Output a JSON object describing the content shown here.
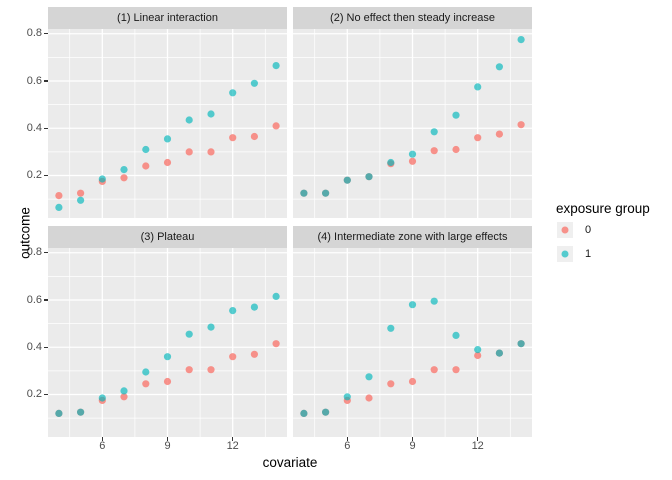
{
  "chart_data": {
    "type": "scatter",
    "xlabel": "covariate",
    "ylabel": "outcome",
    "x": [
      4,
      5,
      6,
      7,
      8,
      9,
      10,
      11,
      12,
      13,
      14
    ],
    "x_ticks": [
      6,
      9,
      12
    ],
    "y_ticks": [
      0.2,
      0.4,
      0.6,
      0.8
    ],
    "x_minor": [
      4.5,
      7.5,
      10.5,
      13.5
    ],
    "y_minor": [
      0.1,
      0.3,
      0.5,
      0.7
    ],
    "x_domain": [
      3.5,
      14.5
    ],
    "y_domain": [
      0.02,
      0.82
    ],
    "grid": true,
    "point_alpha": 0.7,
    "legend": {
      "title": "exposure group",
      "position": "right",
      "entries": [
        {
          "label": "0",
          "color": "#F8766D"
        },
        {
          "label": "1",
          "color": "#00BFC4"
        }
      ]
    },
    "facets": [
      {
        "title": "(1) Linear interaction",
        "series": [
          {
            "name": "0",
            "values": [
              0.115,
              0.125,
              0.175,
              0.19,
              0.24,
              0.255,
              0.3,
              0.3,
              0.36,
              0.365,
              0.41
            ]
          },
          {
            "name": "1",
            "values": [
              0.065,
              0.095,
              0.185,
              0.225,
              0.31,
              0.355,
              0.435,
              0.46,
              0.55,
              0.59,
              0.665
            ]
          }
        ]
      },
      {
        "title": "(2) No effect then steady increase",
        "series": [
          {
            "name": "0",
            "values": [
              0.125,
              0.125,
              0.18,
              0.195,
              0.25,
              0.26,
              0.305,
              0.31,
              0.36,
              0.375,
              0.415
            ]
          },
          {
            "name": "1",
            "values": [
              0.125,
              0.125,
              0.18,
              0.195,
              0.255,
              0.29,
              0.385,
              0.455,
              0.575,
              0.66,
              0.775
            ]
          }
        ]
      },
      {
        "title": "(3) Plateau",
        "series": [
          {
            "name": "0",
            "values": [
              0.12,
              0.125,
              0.175,
              0.19,
              0.245,
              0.255,
              0.305,
              0.305,
              0.36,
              0.37,
              0.415
            ]
          },
          {
            "name": "1",
            "values": [
              0.12,
              0.125,
              0.185,
              0.215,
              0.295,
              0.36,
              0.455,
              0.485,
              0.555,
              0.57,
              0.615
            ]
          }
        ]
      },
      {
        "title": "(4) Intermediate zone with large effects",
        "series": [
          {
            "name": "0",
            "values": [
              0.12,
              0.125,
              0.175,
              0.185,
              0.245,
              0.255,
              0.305,
              0.305,
              0.365,
              0.375,
              0.415
            ]
          },
          {
            "name": "1",
            "values": [
              0.12,
              0.125,
              0.19,
              0.275,
              0.48,
              0.58,
              0.595,
              0.45,
              0.39,
              0.375,
              0.415
            ]
          }
        ]
      }
    ]
  },
  "colors": {
    "panel_bg": "#EBEBEB",
    "strip_bg": "#D5D5D5",
    "gridline": "#FFFFFF",
    "tick_text": "#4D4D4D",
    "group0": "#F8766D",
    "group1": "#00BFC4",
    "legend_key_bg": "#EFEFEF"
  }
}
